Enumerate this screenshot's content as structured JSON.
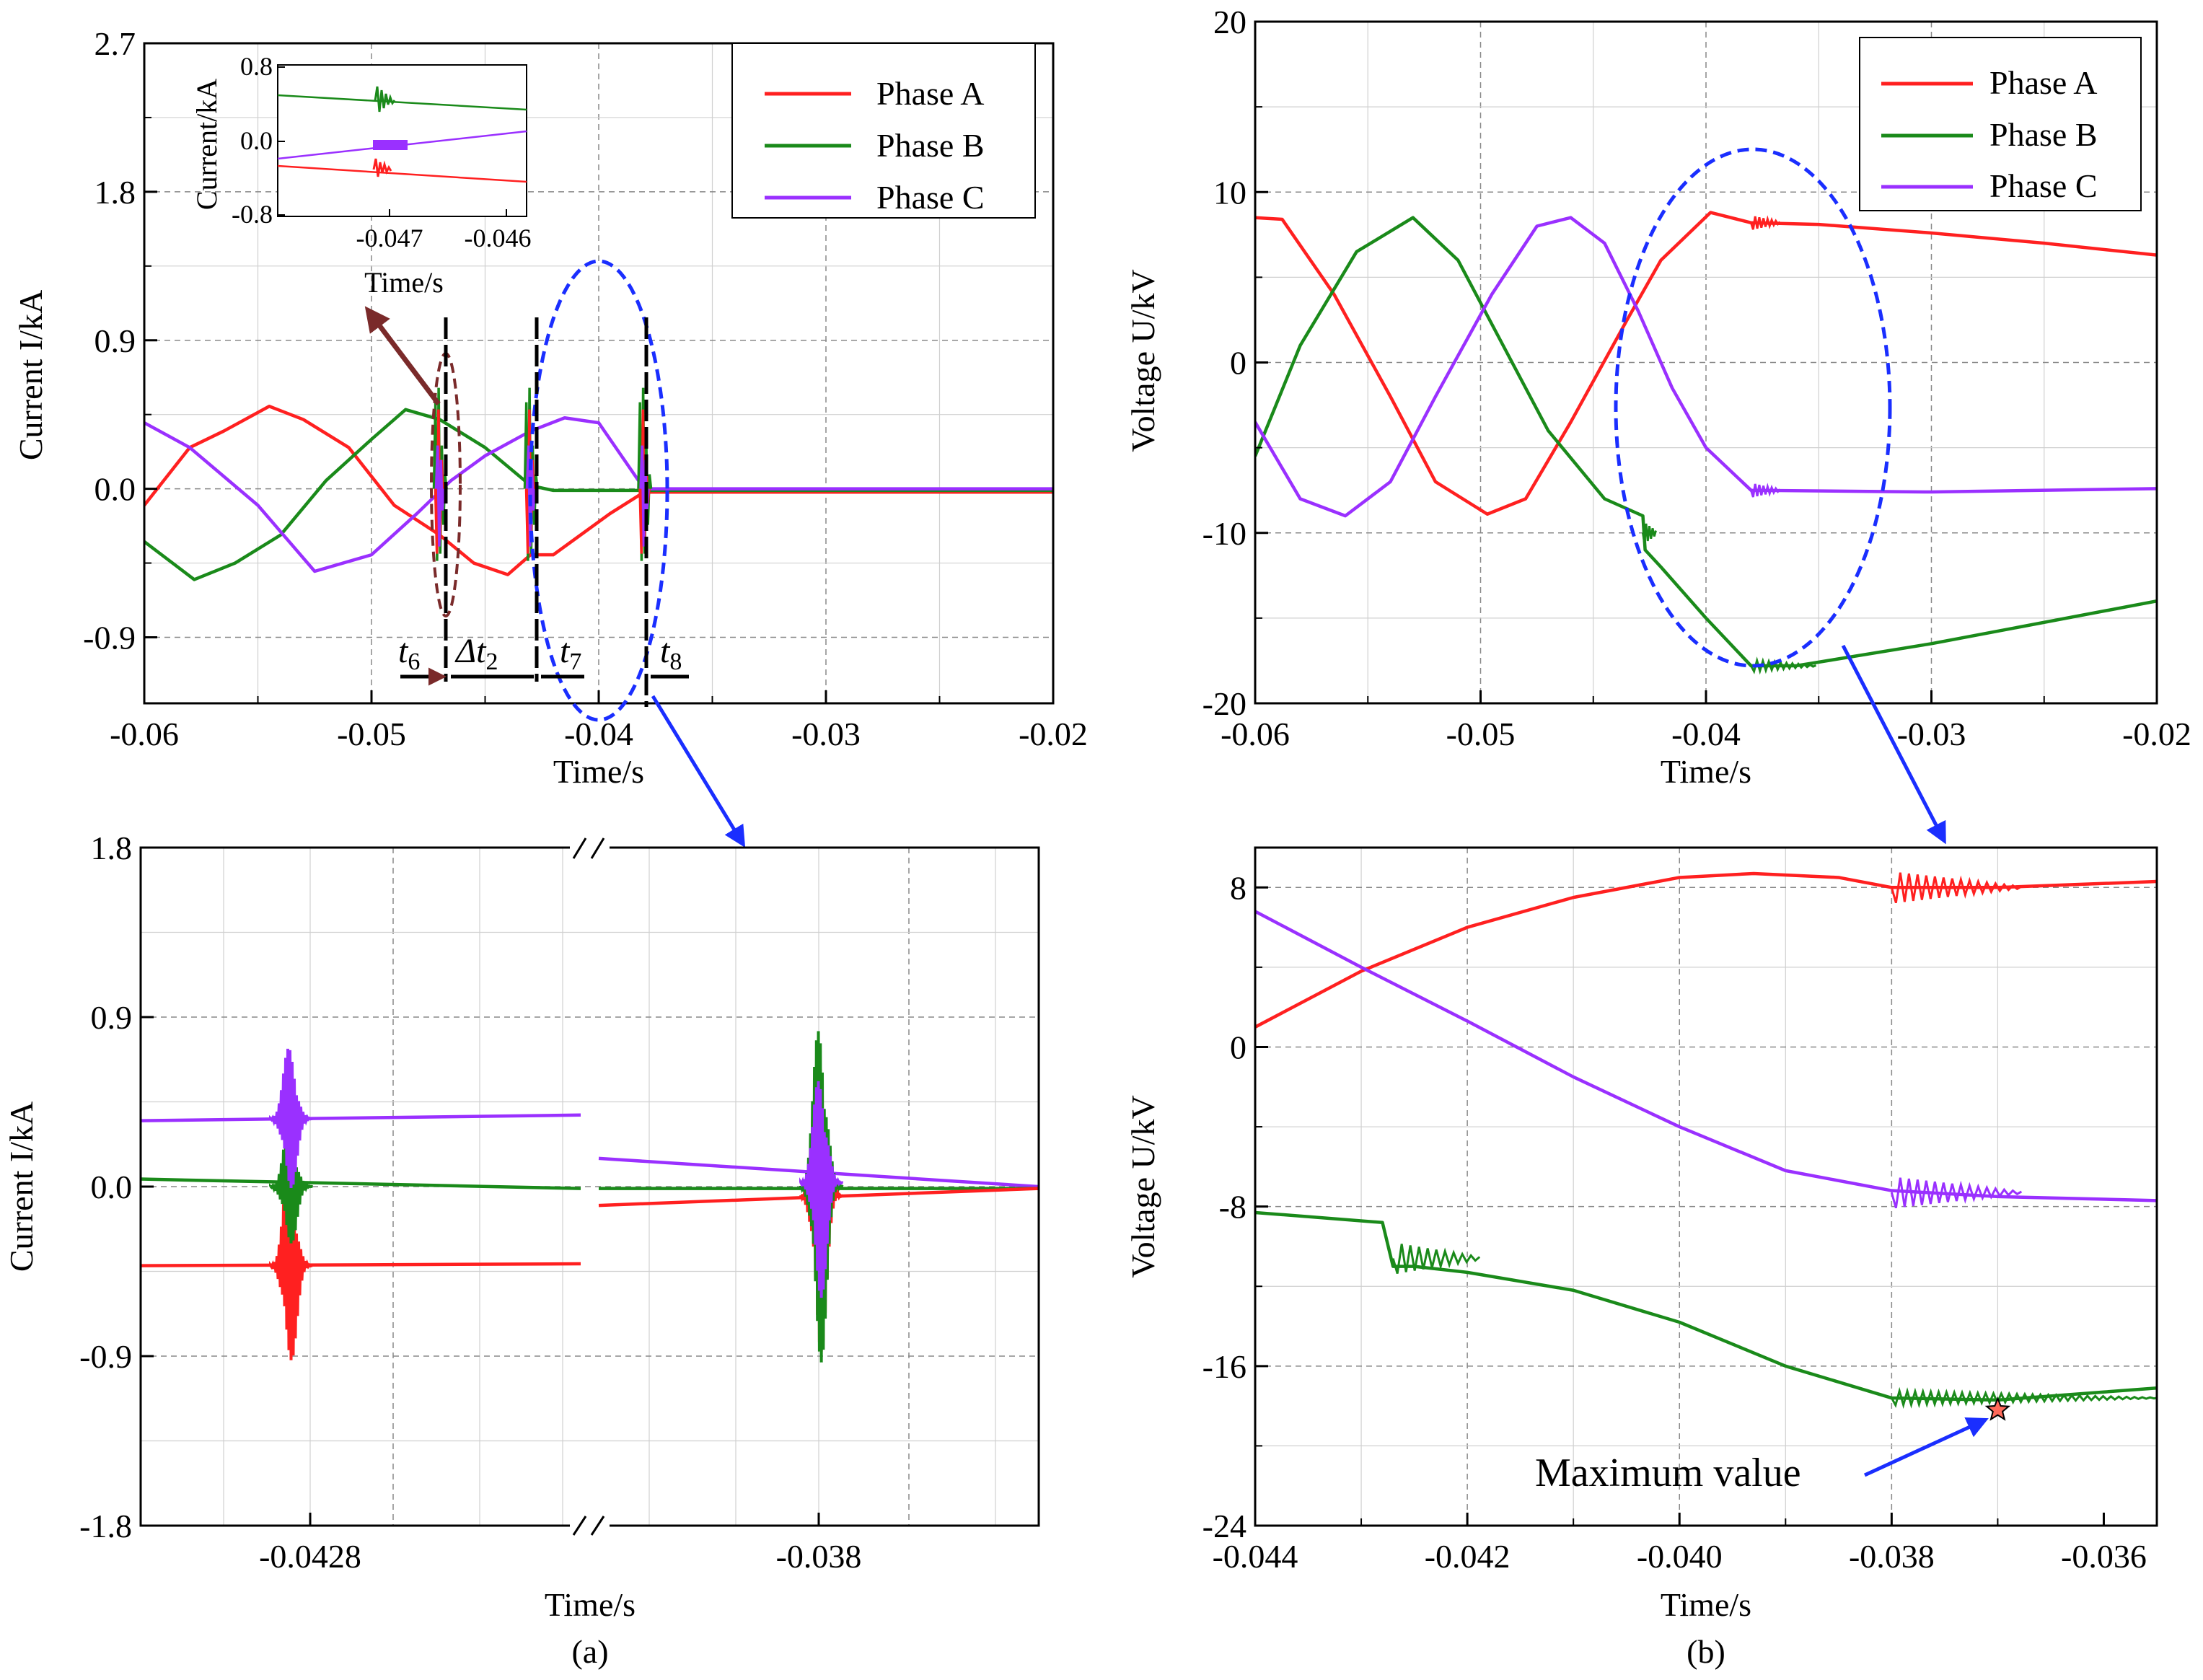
{
  "colors": {
    "phase_a": "#ff2020",
    "phase_b": "#1a8a1a",
    "phase_c": "#9a30ff",
    "zoom": "#1a2eff",
    "marker": "#7a2a2a",
    "grid": "#b0b0b0"
  },
  "captions": {
    "a": "(a)",
    "b": "(b)"
  },
  "chart_data": [
    {
      "id": "a_top",
      "type": "line",
      "xlabel": "Time/s",
      "ylabel": "Current I/kA",
      "xlim": [
        -0.06,
        -0.02
      ],
      "ylim": [
        -1.3,
        2.7
      ],
      "xticks": [
        -0.06,
        -0.05,
        -0.04,
        -0.03,
        -0.02
      ],
      "xtick_labels": [
        "-0.06",
        "-0.05",
        "-0.04",
        "-0.03",
        "-0.02"
      ],
      "yticks": [
        -0.9,
        0.0,
        0.9,
        1.8,
        2.7
      ],
      "ytick_labels": [
        "-0.9",
        "0.0",
        "0.9",
        "1.8",
        "2.7"
      ],
      "grid": true,
      "legend_position": "top-right",
      "series": [
        {
          "name": "Phase A",
          "color": "#ff2020",
          "x": [
            -0.06,
            -0.058,
            -0.0565,
            -0.0545,
            -0.053,
            -0.051,
            -0.049,
            -0.047,
            -0.0455,
            -0.044,
            -0.043,
            -0.042,
            -0.041,
            -0.0395,
            -0.038,
            -0.036,
            -0.03,
            -0.02
          ],
          "y": [
            -0.1,
            0.25,
            0.35,
            0.5,
            0.42,
            0.25,
            -0.1,
            -0.28,
            -0.45,
            -0.52,
            -0.4,
            -0.4,
            -0.3,
            -0.15,
            -0.02,
            -0.02,
            -0.02,
            -0.02
          ]
        },
        {
          "name": "Phase B",
          "color": "#1a8a1a",
          "x": [
            -0.06,
            -0.0578,
            -0.056,
            -0.054,
            -0.052,
            -0.05,
            -0.0485,
            -0.047,
            -0.045,
            -0.043,
            -0.042,
            -0.04,
            -0.038,
            -0.03,
            -0.02
          ],
          "y": [
            -0.32,
            -0.55,
            -0.45,
            -0.28,
            0.05,
            0.3,
            0.48,
            0.42,
            0.25,
            0.02,
            -0.01,
            -0.01,
            -0.01,
            -0.01,
            -0.01
          ]
        },
        {
          "name": "Phase C",
          "color": "#9a30ff",
          "x": [
            -0.06,
            -0.058,
            -0.055,
            -0.0525,
            -0.05,
            -0.048,
            -0.0465,
            -0.045,
            -0.043,
            -0.0415,
            -0.04,
            -0.039,
            -0.038,
            -0.03,
            -0.02
          ],
          "y": [
            0.4,
            0.25,
            -0.1,
            -0.5,
            -0.4,
            -0.15,
            0.05,
            0.2,
            0.35,
            0.43,
            0.4,
            0.2,
            0.0,
            0.0,
            0.0
          ]
        }
      ],
      "legend_entries": [
        "Phase A",
        "Phase B",
        "Phase C"
      ],
      "annotations": {
        "t6": "t",
        "t6_sub": "6",
        "dt2": "Δt",
        "dt2_sub": "2",
        "t7": "t",
        "t7_sub": "7",
        "t8": "t",
        "t8_sub": "8"
      },
      "inset": {
        "ylabel": "Current/kA",
        "xlabel": "Time/s",
        "xlim": [
          -0.0477,
          -0.0456
        ],
        "ylim": [
          -0.8,
          0.8
        ],
        "xtick_labels": [
          "-0.047",
          "-0.046"
        ],
        "xticks": [
          -0.047,
          -0.046
        ],
        "ytick_labels": [
          "-0.8",
          "0.0",
          "0.8"
        ],
        "yticks": [
          -0.8,
          0.0,
          0.8
        ],
        "series": [
          {
            "name": "Phase B",
            "x": [
              -0.0477,
              -0.0456
            ],
            "y": [
              0.5,
              0.32
            ]
          },
          {
            "name": "Phase C",
            "x": [
              -0.0477,
              -0.0456
            ],
            "y": [
              -0.28,
              0.1
            ]
          },
          {
            "name": "Phase A",
            "x": [
              -0.0477,
              -0.0456
            ],
            "y": [
              -0.32,
              -0.45
            ]
          }
        ]
      }
    },
    {
      "id": "a_bottom",
      "type": "line",
      "xlabel": "Time/s",
      "ylabel": "Current I/kA",
      "ylim": [
        -1.8,
        1.8
      ],
      "yticks": [
        -1.8,
        -0.9,
        0.0,
        0.9,
        1.8
      ],
      "ytick_labels": [
        "-1.8",
        "-0.9",
        "0.0",
        "0.9",
        "1.8"
      ],
      "xtick_labels": [
        "-0.0428",
        "-0.038"
      ],
      "grid": true,
      "broken_axis": true,
      "segments": [
        {
          "series": [
            {
              "name": "Phase C",
              "y": [
                0.35,
                0.38
              ]
            },
            {
              "name": "Phase B",
              "y": [
                0.04,
                -0.01
              ]
            },
            {
              "name": "Phase A",
              "y": [
                -0.42,
                -0.41
              ]
            }
          ],
          "spike_center": "-0.0428"
        },
        {
          "series": [
            {
              "name": "Phase C",
              "y": [
                0.15,
                0.0
              ]
            },
            {
              "name": "Phase B",
              "y": [
                -0.01,
                -0.01
              ]
            },
            {
              "name": "Phase A",
              "y": [
                -0.1,
                -0.01
              ]
            }
          ],
          "spike_center": "-0.038"
        }
      ]
    },
    {
      "id": "b_top",
      "type": "line",
      "xlabel": "Time/s",
      "ylabel": "Voltage U/kV",
      "xlim": [
        -0.06,
        -0.02
      ],
      "ylim": [
        -20,
        20
      ],
      "xticks": [
        -0.06,
        -0.05,
        -0.04,
        -0.03,
        -0.02
      ],
      "xtick_labels": [
        "-0.06",
        "-0.05",
        "-0.04",
        "-0.03",
        "-0.02"
      ],
      "yticks": [
        -20,
        -10,
        0,
        10,
        20
      ],
      "ytick_labels": [
        "-20",
        "-10",
        "0",
        "10",
        "20"
      ],
      "grid": true,
      "legend_position": "top-right",
      "series": [
        {
          "name": "Phase A",
          "color": "#ff2020",
          "x": [
            -0.06,
            -0.0588,
            -0.0565,
            -0.054,
            -0.052,
            -0.0497,
            -0.048,
            -0.046,
            -0.0435,
            -0.042,
            -0.0398,
            -0.038,
            -0.035,
            -0.03,
            -0.025,
            -0.02
          ],
          "y": [
            8.5,
            8.4,
            4.0,
            -2.0,
            -7.0,
            -8.9,
            -8.0,
            -3.5,
            2.5,
            6.0,
            8.8,
            8.2,
            8.1,
            7.6,
            7.0,
            6.3
          ]
        },
        {
          "name": "Phase B",
          "color": "#1a8a1a",
          "x": [
            -0.06,
            -0.058,
            -0.0555,
            -0.053,
            -0.051,
            -0.049,
            -0.047,
            -0.0445,
            -0.0428,
            -0.0427,
            -0.042,
            -0.04,
            -0.038,
            -0.036,
            -0.03,
            -0.02
          ],
          "y": [
            -5.5,
            1.0,
            6.5,
            8.5,
            6.0,
            1.0,
            -4.0,
            -8.0,
            -9.0,
            -11.0,
            -12.0,
            -15.0,
            -17.8,
            -17.8,
            -16.5,
            -14.0
          ]
        },
        {
          "name": "Phase C",
          "color": "#9a30ff",
          "x": [
            -0.06,
            -0.058,
            -0.056,
            -0.054,
            -0.052,
            -0.0495,
            -0.0475,
            -0.046,
            -0.0445,
            -0.043,
            -0.0415,
            -0.04,
            -0.038,
            -0.03,
            -0.02
          ],
          "y": [
            -3.5,
            -8.0,
            -9.0,
            -7.0,
            -2.0,
            4.0,
            8.0,
            8.5,
            7.0,
            3.0,
            -1.5,
            -5.0,
            -7.5,
            -7.6,
            -7.4
          ]
        }
      ],
      "legend_entries": [
        "Phase A",
        "Phase B",
        "Phase C"
      ]
    },
    {
      "id": "b_bottom",
      "type": "line",
      "xlabel": "Time/s",
      "ylabel": "Voltage U/kV",
      "xlim": [
        -0.044,
        -0.0355
      ],
      "ylim": [
        -24,
        10
      ],
      "xticks": [
        -0.044,
        -0.042,
        -0.04,
        -0.038,
        -0.036
      ],
      "xtick_labels": [
        "-0.044",
        "-0.042",
        "-0.040",
        "-0.038",
        "-0.036"
      ],
      "yticks": [
        -24,
        -16,
        -8,
        0,
        8
      ],
      "ytick_labels": [
        "-24",
        "-16",
        "-8",
        "0",
        "8"
      ],
      "grid": true,
      "series": [
        {
          "name": "Phase A",
          "color": "#ff2020",
          "x": [
            -0.044,
            -0.043,
            -0.042,
            -0.041,
            -0.04,
            -0.0393,
            -0.0385,
            -0.038,
            -0.037,
            -0.0355
          ],
          "y": [
            1.0,
            3.8,
            6.0,
            7.5,
            8.5,
            8.7,
            8.5,
            8.0,
            8.0,
            8.3
          ]
        },
        {
          "name": "Phase B",
          "color": "#1a8a1a",
          "x": [
            -0.044,
            -0.0428,
            -0.0427,
            -0.0425,
            -0.042,
            -0.041,
            -0.04,
            -0.039,
            -0.038,
            -0.037,
            -0.036,
            -0.0355
          ],
          "y": [
            -8.3,
            -8.8,
            -11.0,
            -11.0,
            -11.3,
            -12.2,
            -13.8,
            -16.0,
            -17.6,
            -17.7,
            -17.3,
            -17.1
          ]
        },
        {
          "name": "Phase C",
          "color": "#9a30ff",
          "x": [
            -0.044,
            -0.043,
            -0.042,
            -0.041,
            -0.04,
            -0.039,
            -0.038,
            -0.037,
            -0.0355
          ],
          "y": [
            6.8,
            4.0,
            1.3,
            -1.5,
            -4.0,
            -6.2,
            -7.2,
            -7.5,
            -7.7
          ]
        }
      ],
      "annotation": {
        "label": "Maximum value",
        "x": -0.037,
        "y": -18.2
      }
    }
  ]
}
